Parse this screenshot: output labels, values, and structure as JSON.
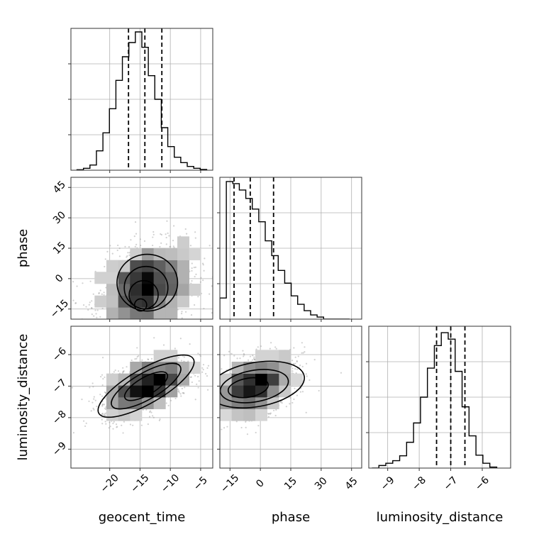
{
  "chart_data": {
    "type": "corner",
    "grid": true,
    "colors": {
      "hist": "#000000",
      "points": "#9a9a9a",
      "contour": "#000000",
      "grid": "#b0b0b0"
    },
    "parameters": [
      {
        "name": "geocent_time",
        "range": [
          -26.4,
          -3.0
        ],
        "ticks": [
          -20,
          -15,
          -10,
          -5
        ],
        "tick_labels": [
          "−20",
          "−15",
          "−10",
          "−5"
        ],
        "quantiles": [
          -16.9,
          -14.2,
          -11.4
        ],
        "hist_edges_start": -25.4,
        "hist_bin_width": 1.07,
        "hist_counts": [
          0.2,
          0.8,
          2.2,
          8.2,
          15.8,
          26.0,
          38.0,
          48.0,
          54.0,
          58.5,
          52.0,
          40.0,
          30.0,
          18.0,
          10.0,
          5.5,
          3.2,
          1.6,
          0.8,
          0.3
        ],
        "hist_ylim": [
          0,
          60
        ]
      },
      {
        "name": "phase",
        "range": [
          -20,
          50
        ],
        "ticks": [
          -15,
          0,
          15,
          30,
          45
        ],
        "tick_labels": [
          "−15",
          "0",
          "15",
          "30",
          "45"
        ],
        "quantiles": [
          -13.0,
          -5.0,
          6.5
        ],
        "hist_edges_start": -20,
        "hist_bin_width": 3.2,
        "hist_counts": [
          10,
          65,
          64,
          61,
          57,
          52,
          46,
          37,
          30,
          23,
          17,
          11,
          7,
          4,
          2,
          1,
          0,
          0,
          0,
          0
        ],
        "hist_ylim": [
          0,
          67
        ]
      },
      {
        "name": "luminosity_distance",
        "range": [
          -9.6,
          -5.1
        ],
        "ticks": [
          -9,
          -8,
          -7,
          -6
        ],
        "tick_labels": [
          "−9",
          "−8",
          "−7",
          "−6"
        ],
        "quantiles": [
          -7.45,
          -7.0,
          -6.55
        ],
        "hist_edges_start": -9.5,
        "hist_bin_width": 0.22,
        "hist_counts": [
          0,
          0.8,
          1.5,
          2.3,
          3.8,
          8.0,
          14.0,
          22.0,
          31.0,
          38.0,
          42.0,
          40.0,
          30.0,
          19.0,
          10.0,
          4.0,
          1.5,
          0.3
        ],
        "hist_ylim": [
          0,
          44
        ]
      }
    ],
    "pairs": [
      {
        "x": "geocent_time",
        "y": "phase",
        "mean": [
          -14.0,
          -5.0
        ],
        "sd": [
          4.0,
          11.0
        ],
        "corr": 0.3,
        "point_count": 1500,
        "contour_levels": [
          {
            "center": [
              -13.8,
              -2.0
            ],
            "rx": 5.0,
            "ry": 14.0,
            "angle": 0
          },
          {
            "center": [
              -14.0,
              -4.5
            ],
            "rx": 3.6,
            "ry": 10.5,
            "angle": 0
          },
          {
            "center": [
              -14.4,
              -8.0
            ],
            "rx": 2.4,
            "ry": 7.0,
            "angle": 0
          },
          {
            "center": [
              -14.9,
              -13.0
            ],
            "rx": 1.0,
            "ry": 3.0,
            "angle": 0
          }
        ]
      },
      {
        "x": "geocent_time",
        "y": "luminosity_distance",
        "mean": [
          -14.0,
          -7.0
        ],
        "sd": [
          3.6,
          0.48
        ],
        "corr": 0.55,
        "point_count": 1500,
        "contour_levels": [
          {
            "center": [
              -14.0,
              -7.0
            ],
            "rx": 9.0,
            "ry": 0.55,
            "angle": 30
          },
          {
            "center": [
              -14.0,
              -7.0
            ],
            "rx": 6.5,
            "ry": 0.42,
            "angle": 30
          },
          {
            "center": [
              -14.0,
              -7.0
            ],
            "rx": 4.0,
            "ry": 0.28,
            "angle": 30
          }
        ]
      },
      {
        "x": "phase",
        "y": "luminosity_distance",
        "mean": [
          -3.0,
          -7.0
        ],
        "sd": [
          10.0,
          0.48
        ],
        "corr": 0.4,
        "point_count": 1500,
        "contour_levels": [
          {
            "center": [
              -2.0,
              -6.95
            ],
            "rx": 24.0,
            "ry": 0.7,
            "angle": 10
          },
          {
            "center": [
              -3.0,
              -7.0
            ],
            "rx": 17.0,
            "ry": 0.5,
            "angle": 10
          },
          {
            "center": [
              -6.0,
              -7.05
            ],
            "rx": 10.0,
            "ry": 0.3,
            "angle": 10
          }
        ]
      }
    ]
  }
}
